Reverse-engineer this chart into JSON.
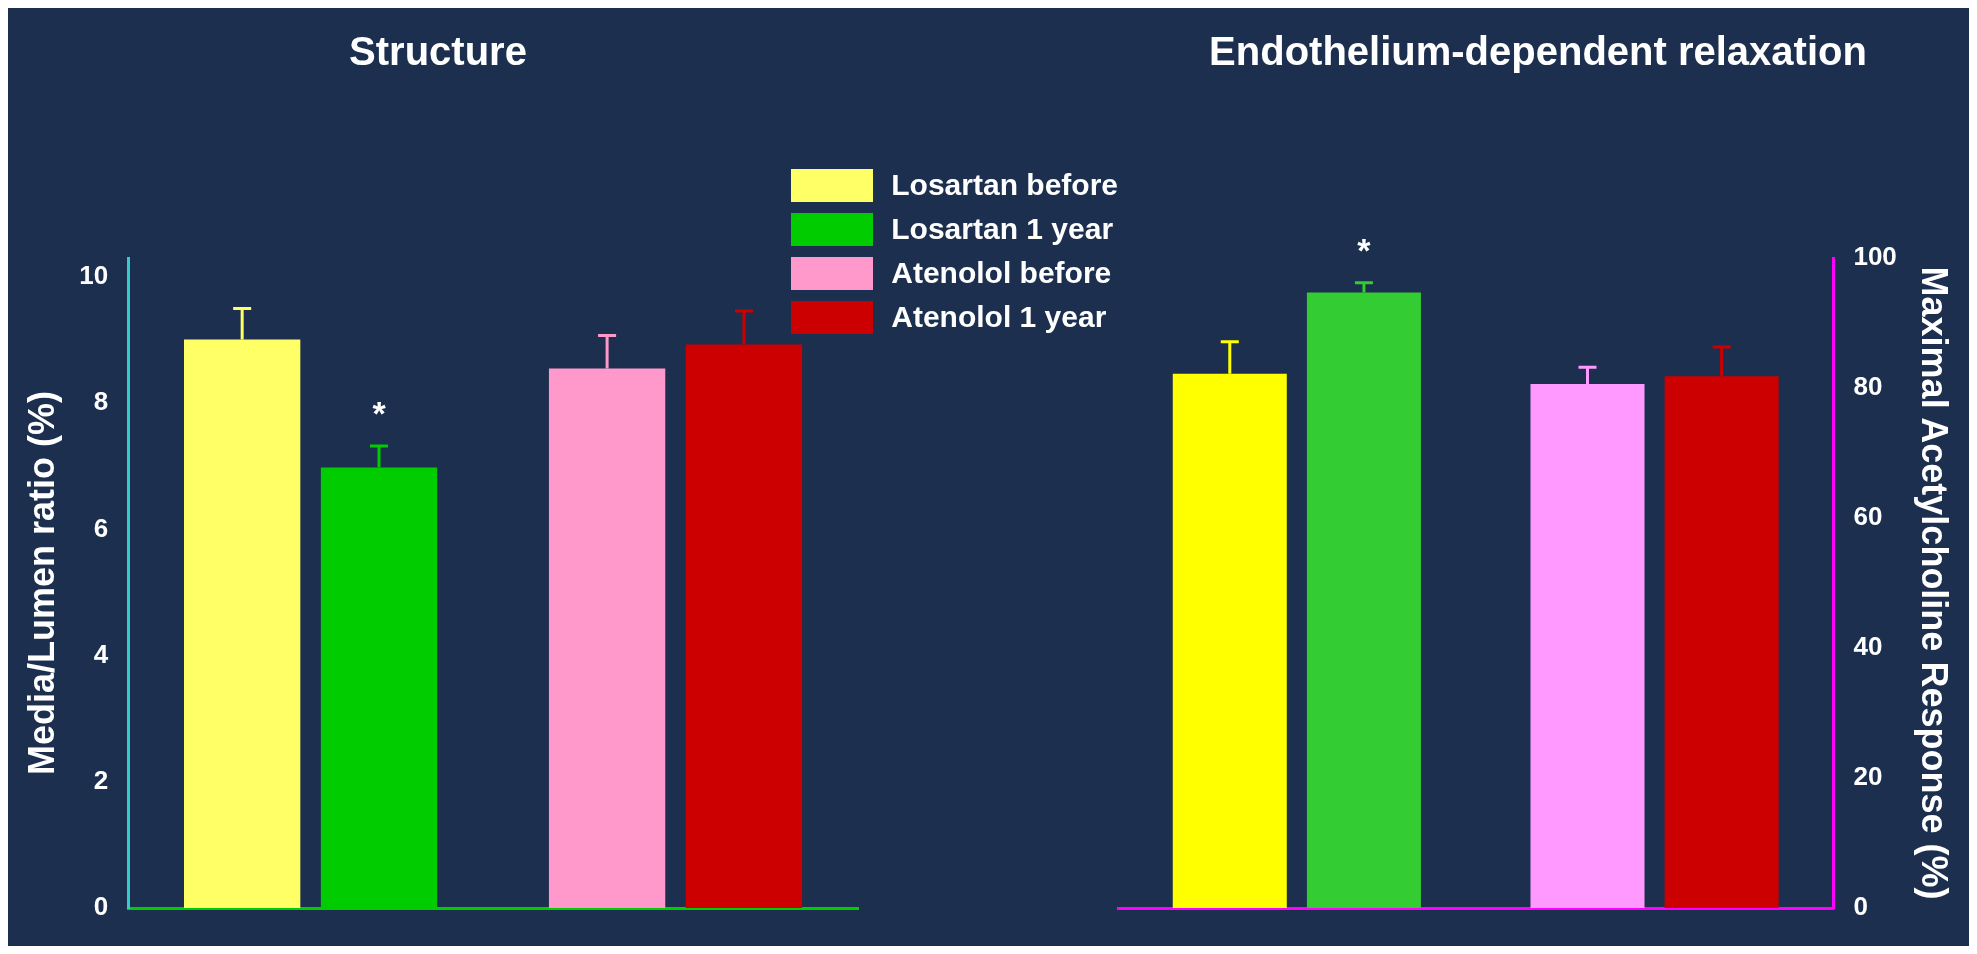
{
  "chart_data": [
    {
      "type": "bar",
      "title": "Structure",
      "ylabel": "Media/Lumen ratio (%)",
      "categories": [
        null,
        null
      ],
      "ylim": [
        0,
        10.3
      ],
      "yticks": [
        0,
        2,
        4,
        6,
        8,
        10
      ],
      "legend": "top right",
      "series": [
        {
          "name": "Losartan before",
          "color": "#ffff66",
          "values": [
            9.01,
            null
          ],
          "errors": [
            [
              9.01,
              9.5
            ],
            null
          ]
        },
        {
          "name": "Losartan 1 year",
          "color": "#00cc00",
          "values": [
            6.98,
            null
          ],
          "errors": [
            [
              6.98,
              7.32
            ],
            null
          ]
        },
        {
          "name": "Atenolol before",
          "color": "#ff99cc",
          "values": [
            null,
            8.55
          ],
          "errors": [
            null,
            [
              8.55,
              9.07
            ]
          ]
        },
        {
          "name": "Atenolol 1 year",
          "color": "#cc0000",
          "values": [
            null,
            8.93
          ],
          "errors": [
            null,
            [
              8.93,
              9.46
            ]
          ]
        }
      ],
      "annotations": [
        "*"
      ]
    },
    {
      "type": "bar",
      "title": "Endothelium-dependent relaxation",
      "y2label": "Maximal Acetylcholine Response (%)",
      "categories": [
        null,
        null
      ],
      "y2lim": [
        0,
        100
      ],
      "y2ticks": [
        0,
        20,
        40,
        60,
        80,
        100
      ],
      "series": [
        {
          "color": "#ffff00",
          "axis": "y2",
          "values": [
            82.2,
            null
          ],
          "errors": [
            [
              82.2,
              87.1
            ],
            null
          ]
        },
        {
          "color": "#33cc33",
          "axis": "y2",
          "values": [
            94.7,
            null
          ],
          "errors": [
            [
              94.7,
              96.2
            ],
            null
          ]
        },
        {
          "color": "#ff99ff",
          "axis": "y2",
          "values": [
            null,
            80.6
          ],
          "errors": [
            null,
            [
              80.6,
              83.2
            ]
          ]
        },
        {
          "color": "#cc0000",
          "axis": "y2",
          "values": [
            null,
            81.8
          ],
          "errors": [
            null,
            [
              81.8,
              86.3
            ]
          ]
        }
      ],
      "annotations": [
        "*"
      ]
    }
  ]
}
